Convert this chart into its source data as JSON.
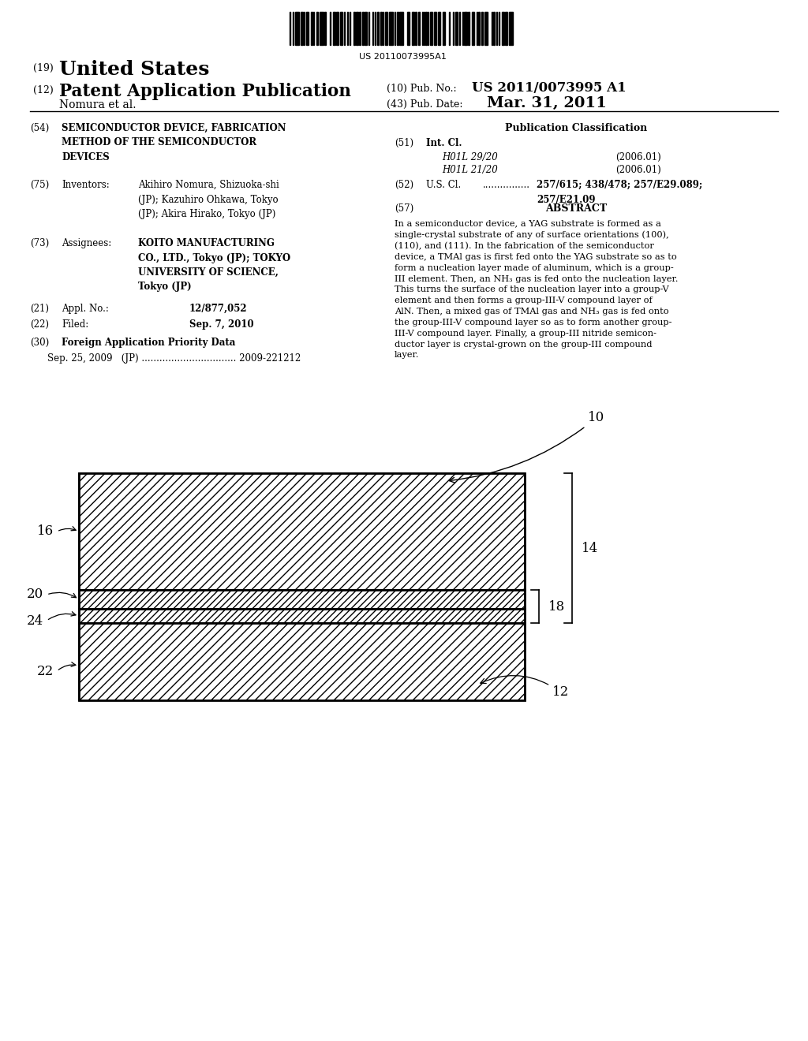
{
  "barcode_text": "US 20110073995A1",
  "header_19": "(19)",
  "header_19_text": "United States",
  "header_12": "(12)",
  "header_12_text": "Patent Application Publication",
  "header_10_label": "(10) Pub. No.:",
  "header_10_value": "US 2011/0073995 A1",
  "header_43_label": "(43) Pub. Date:",
  "header_43_value": "Mar. 31, 2011",
  "header_name": "Nomura et al.",
  "field_54_num": "(54)",
  "field_54_title": "SEMICONDUCTOR DEVICE, FABRICATION\nMETHOD OF THE SEMICONDUCTOR\nDEVICES",
  "field_75_num": "(75)",
  "field_75_label": "Inventors:",
  "field_75_text": "Akihiro Nomura, Shizuoka-shi\n(JP); Kazuhiro Ohkawa, Tokyo\n(JP); Akira Hirako, Tokyo (JP)",
  "field_73_num": "(73)",
  "field_73_label": "Assignees:",
  "field_73_text": "KOITO MANUFACTURING\nCO., LTD., Tokyo (JP); TOKYO\nUNIVERSITY OF SCIENCE,\nTokyo (JP)",
  "field_21_num": "(21)",
  "field_21_label": "Appl. No.:",
  "field_21_value": "12/877,052",
  "field_22_num": "(22)",
  "field_22_label": "Filed:",
  "field_22_value": "Sep. 7, 2010",
  "field_30_num": "(30)",
  "field_30_label": "Foreign Application Priority Data",
  "field_30_data": "Sep. 25, 2009   (JP) ................................ 2009-221212",
  "pub_class_title": "Publication Classification",
  "field_51_num": "(51)",
  "field_51_label": "Int. Cl.",
  "field_51_class1": "H01L 29/20",
  "field_51_date1": "(2006.01)",
  "field_51_class2": "H01L 21/20",
  "field_51_date2": "(2006.01)",
  "field_52_num": "(52)",
  "field_52_label": "U.S. Cl.",
  "field_52_dots": "................",
  "field_52_value": "257/615; 438/478; 257/E29.089;\n257/E21.09",
  "field_57_num": "(57)",
  "field_57_label": "ABSTRACT",
  "abstract_text": "In a semiconductor device, a YAG substrate is formed as a\nsingle-crystal substrate of any of surface orientations (100),\n(110), and (111). In the fabrication of the semiconductor\ndevice, a TMAl gas is first fed onto the YAG substrate so as to\nform a nucleation layer made of aluminum, which is a group-\nIII element. Then, an NH₃ gas is fed onto the nucleation layer.\nThis turns the surface of the nucleation layer into a group-V\nelement and then forms a group-III-V compound layer of\nAlN. Then, a mixed gas of TMAl gas and NH₃ gas is fed onto\nthe group-III-V compound layer so as to form another group-\nIII-V compound layer. Finally, a group-III nitride semicon-\nductor layer is crystal-grown on the group-III compound\nlayer.",
  "bg_color": "#ffffff"
}
